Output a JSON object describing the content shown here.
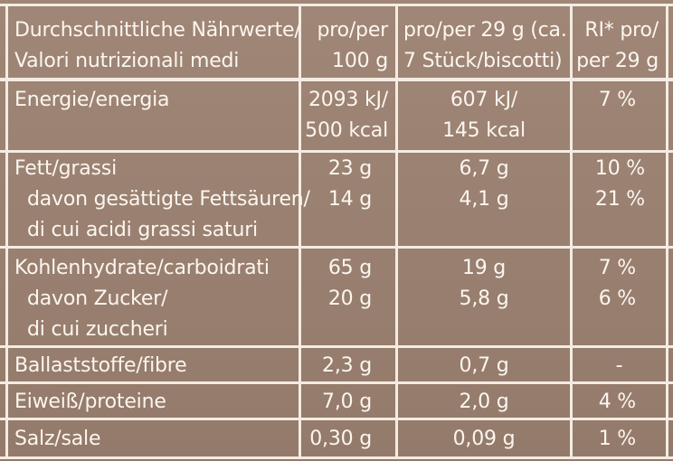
{
  "colors": {
    "background": "#9b8272",
    "text": "#fbf6f0",
    "lines": "#f4ece2"
  },
  "header": {
    "nutrient_line1": "Durchschnittliche Nährwerte/",
    "nutrient_line2": "Valori nutrizionali medi",
    "per100_line1": "pro/per",
    "per100_line2": "100 g",
    "perportion_line1": "pro/per 29 g (ca.",
    "perportion_line2": "7 Stück/biscotti)",
    "ri_line1": "RI* pro/",
    "ri_line2": "per 29 g"
  },
  "rows": {
    "energy": {
      "label": "Energie/energia",
      "per100_line1": "2093 kJ/",
      "per100_line2": "500 kcal",
      "portion_line1": "607 kJ/",
      "portion_line2": "145 kcal",
      "ri": "7 %"
    },
    "fat": {
      "label": "Fett/grassi",
      "per100": "23 g",
      "portion": "6,7 g",
      "ri": "10 %"
    },
    "saturates": {
      "label_line1": "davon gesättigte Fettsäuren/",
      "label_line2": "di cui acidi grassi saturi",
      "per100": "14 g",
      "portion": "4,1 g",
      "ri": "21 %"
    },
    "carbs": {
      "label": "Kohlenhydrate/carboidrati",
      "per100": "65 g",
      "portion": "19 g",
      "ri": "7 %"
    },
    "sugars": {
      "label_line1": "davon Zucker/",
      "label_line2": "di cui zuccheri",
      "per100": "20 g",
      "portion": "5,8 g",
      "ri": "6 %"
    },
    "fibre": {
      "label": "Ballaststoffe/fibre",
      "per100": "2,3 g",
      "portion": "0,7 g",
      "ri": "-"
    },
    "protein": {
      "label": "Eiweiß/proteine",
      "per100": "7,0 g",
      "portion": "2,0 g",
      "ri": "4 %"
    },
    "salt": {
      "label": "Salz/sale",
      "per100": "0,30 g",
      "portion": "0,09 g",
      "ri": "1 %"
    }
  }
}
